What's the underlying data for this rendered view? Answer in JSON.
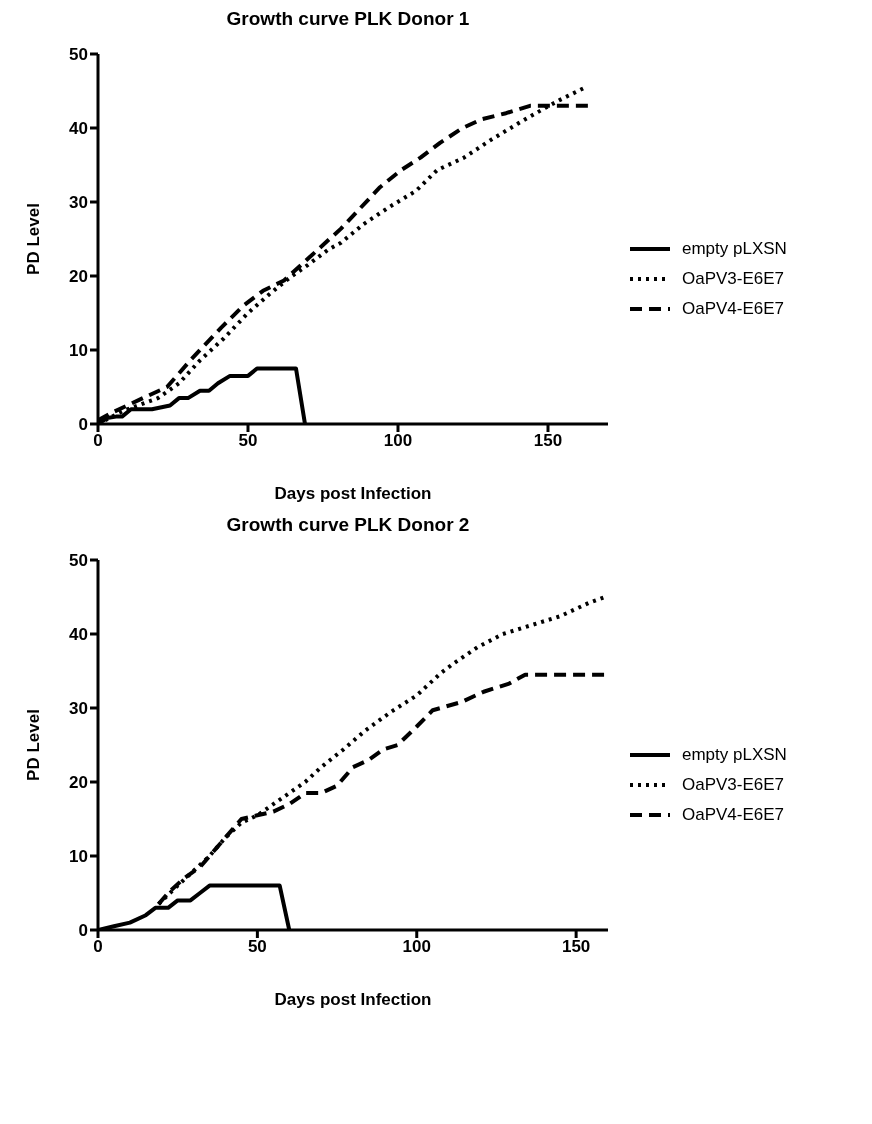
{
  "chart_data": [
    {
      "type": "line",
      "title": "Growth curve PLK Donor 1",
      "xlabel": "Days post Infection",
      "ylabel": "PD Level",
      "xlim": [
        0,
        170
      ],
      "xticks": [
        0,
        50,
        100,
        150
      ],
      "ylim": [
        0,
        50
      ],
      "yticks": [
        0,
        10,
        20,
        30,
        40,
        50
      ],
      "grid": false,
      "legend": "right",
      "series": [
        {
          "name": "empty pLXSN",
          "color": "#000000",
          "line_style": "solid",
          "x": [
            0,
            3,
            6,
            8,
            11,
            18,
            24,
            27,
            30,
            34,
            37,
            40,
            44,
            50,
            53,
            66,
            69
          ],
          "values": [
            0,
            0.8,
            1,
            1,
            2,
            2,
            2.5,
            3.5,
            3.5,
            4.5,
            4.5,
            5.5,
            6.5,
            6.5,
            7.5,
            7.5,
            0
          ]
        },
        {
          "name": "OaPV3-E6E7",
          "color": "#000000",
          "line_style": "dotted",
          "x": [
            0,
            8.5,
            20,
            27,
            34,
            42,
            50,
            57,
            64,
            70,
            76.5,
            81,
            88.5,
            97,
            106,
            113,
            122,
            131,
            140,
            149,
            154,
            163
          ],
          "values": [
            0,
            1.8,
            3.5,
            5.5,
            8.6,
            11.6,
            15,
            17.5,
            19.8,
            21.5,
            23.5,
            24.5,
            27,
            29.3,
            31.5,
            34.3,
            36,
            38.4,
            40.6,
            42.7,
            43.8,
            45.6
          ]
        },
        {
          "name": "OaPV4-E6E7",
          "color": "#000000",
          "line_style": "dashed",
          "x": [
            0,
            4.5,
            15,
            23,
            31,
            41,
            48.5,
            55,
            62,
            68.5,
            81,
            87.5,
            94,
            101,
            107.5,
            114,
            121.5,
            128,
            136,
            144,
            164
          ],
          "values": [
            0.5,
            1.5,
            3.5,
            5,
            8.7,
            13,
            16,
            18,
            19.4,
            21.8,
            26.4,
            29.2,
            32,
            34.3,
            36,
            38,
            40,
            41.2,
            42,
            43,
            43
          ]
        }
      ]
    },
    {
      "type": "line",
      "title": "Growth curve PLK Donor 2",
      "xlabel": "Days post Infection",
      "ylabel": "PD Level",
      "xlim": [
        0,
        160
      ],
      "xticks": [
        0,
        50,
        100,
        150
      ],
      "ylim": [
        0,
        50
      ],
      "yticks": [
        0,
        10,
        20,
        30,
        40,
        50
      ],
      "grid": false,
      "legend": "right",
      "series": [
        {
          "name": "empty pLXSN",
          "color": "#000000",
          "line_style": "solid",
          "x": [
            0,
            5,
            10,
            15,
            18,
            22,
            25,
            29,
            32,
            35,
            57,
            60
          ],
          "values": [
            0,
            0.5,
            1,
            2,
            3,
            3,
            4,
            4,
            5,
            6,
            6,
            0
          ]
        },
        {
          "name": "OaPV3-E6E7",
          "color": "#000000",
          "line_style": "dotted",
          "x": [
            19,
            25,
            30,
            35,
            40,
            45,
            50,
            55,
            60,
            65,
            70,
            77,
            84,
            92,
            100,
            107.5,
            111.5,
            119,
            127,
            136,
            145,
            154,
            159
          ],
          "values": [
            3.5,
            6,
            8,
            10,
            12.5,
            14.5,
            15.5,
            17,
            18.5,
            20,
            22,
            24.4,
            27,
            29.5,
            31.7,
            34.7,
            36,
            38.2,
            40,
            41.2,
            42.4,
            44.2,
            45
          ]
        },
        {
          "name": "OaPV4-E6E7",
          "color": "#000000",
          "line_style": "dashed",
          "x": [
            19,
            22,
            27,
            32,
            37,
            42,
            45,
            50,
            55,
            60,
            65,
            70,
            75,
            80,
            85,
            89.5,
            94,
            100,
            105,
            114,
            121,
            129,
            134,
            159
          ],
          "values": [
            3.5,
            5,
            7,
            8.5,
            11,
            13.5,
            15,
            15.5,
            16,
            17,
            18.5,
            18.5,
            19.5,
            22,
            23,
            24.4,
            25,
            27.5,
            29.7,
            30.8,
            32.2,
            33.3,
            34.5,
            34.5
          ]
        }
      ]
    }
  ]
}
